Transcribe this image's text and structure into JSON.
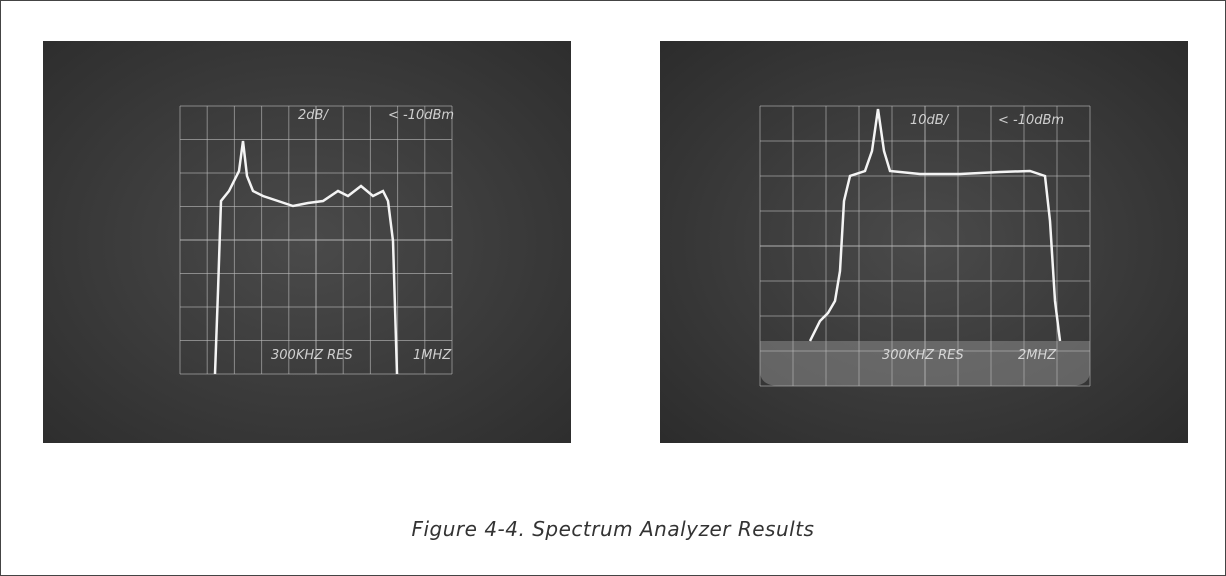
{
  "figure": {
    "panels": [
      {
        "scale": "2dB/",
        "reference": "< -10dBm",
        "resolution": "300KHZ RES",
        "span": "1MHZ"
      },
      {
        "scale": "10dB/",
        "reference": "< -10dBm",
        "resolution": "300KHZ RES",
        "span": "2MHZ"
      }
    ],
    "caption": "Figure 4-4. Spectrum Analyzer Results"
  }
}
